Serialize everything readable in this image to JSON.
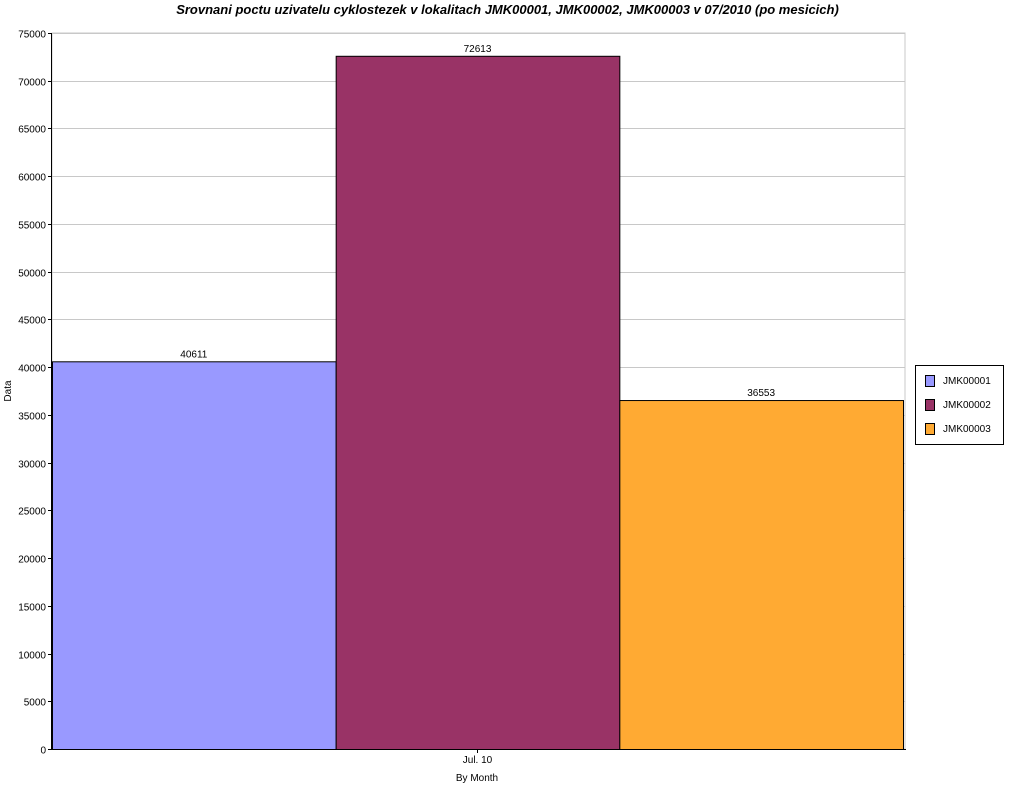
{
  "chart_data": {
    "type": "bar",
    "title": "Srovnani poctu uzivatelu cyklostezek v lokalitach JMK00001, JMK00002, JMK00003 v 07/2010 (po mesicich)",
    "xlabel": "By Month",
    "ylabel": "Data",
    "categories": [
      "Jul. 10"
    ],
    "ylim": [
      0,
      75000
    ],
    "yticks": [
      0,
      5000,
      10000,
      15000,
      20000,
      25000,
      30000,
      35000,
      40000,
      45000,
      50000,
      55000,
      60000,
      65000,
      70000,
      75000
    ],
    "grid": true,
    "legend_position": "right",
    "series": [
      {
        "name": "JMK00001",
        "values": [
          40611
        ],
        "color": "#9999ff"
      },
      {
        "name": "JMK00002",
        "values": [
          72613
        ],
        "color": "#993366"
      },
      {
        "name": "JMK00003",
        "values": [
          36553
        ],
        "color": "#ffaa33"
      }
    ]
  }
}
